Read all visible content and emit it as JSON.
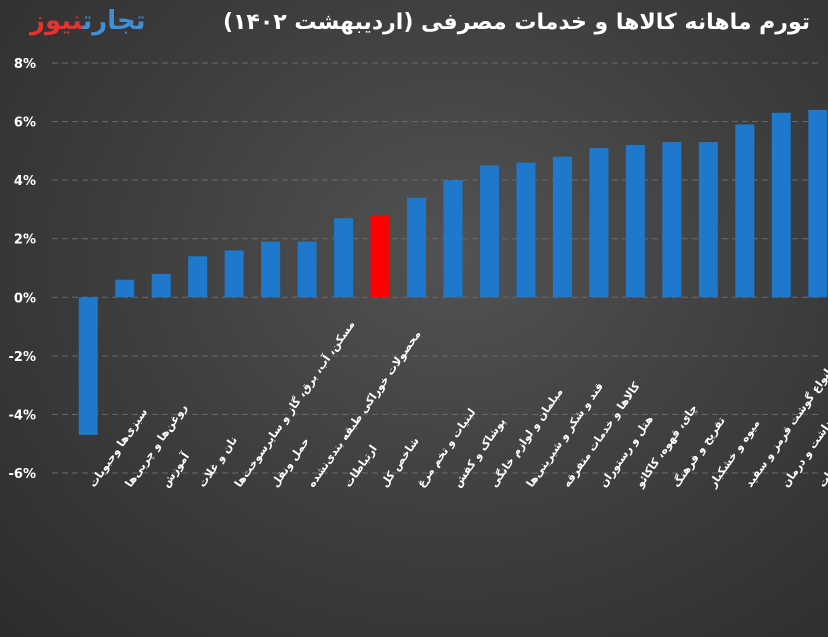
{
  "logo": {
    "part1": "نیوز",
    "part2": "تجارت"
  },
  "chart_data": {
    "type": "bar",
    "title": "تورم ماهانه کالاها و خدمات مصرفی (اردیبهشت ۱۴۰۲)",
    "xlabel": "",
    "ylabel": "",
    "ylim": [
      -6,
      8
    ],
    "yticks": [
      8,
      6,
      4,
      2,
      0,
      -2,
      -4,
      -6
    ],
    "ytick_labels": [
      "8%",
      "6%",
      "4%",
      "2%",
      "0%",
      "-2%",
      "-4%",
      "-6%"
    ],
    "grid": true,
    "legend": "none",
    "categories": [
      "سبزی‌ها وحبوبات",
      "روغن‌ها و چربی‌ها",
      "آموزش",
      "نان و غلات",
      "مسکن، آب، برق، گاز و سایرسوخت‌ها",
      "حمل ونقل",
      "محصولات خوراکی طبقه بندی‌نشده",
      "ارتباطات",
      "شاخص کل",
      "لبنیات و تخم مرغ",
      "پوشاک و کفش",
      "مبلمان و لوازم خانگی",
      "قند و شکر و شیرینی‌ها",
      "کالاها و خدمات متفرقه",
      "هتل و رستوران",
      "چای، قهوه، کاکائو",
      "تفریح و فرهنگ",
      "میوه و خشکبار",
      "انواع گوشت قرمز و سفید",
      "بهداشت و درمان",
      "دخانیات"
    ],
    "values": [
      -4.7,
      0.6,
      0.8,
      1.4,
      1.6,
      1.9,
      1.9,
      2.7,
      2.8,
      3.4,
      4.0,
      4.5,
      4.6,
      4.8,
      5.1,
      5.2,
      5.3,
      5.3,
      5.9,
      6.3,
      6.4
    ],
    "colors": {
      "default": "#1e78cc",
      "highlight": "#ff0000",
      "highlight_index": 8
    }
  }
}
